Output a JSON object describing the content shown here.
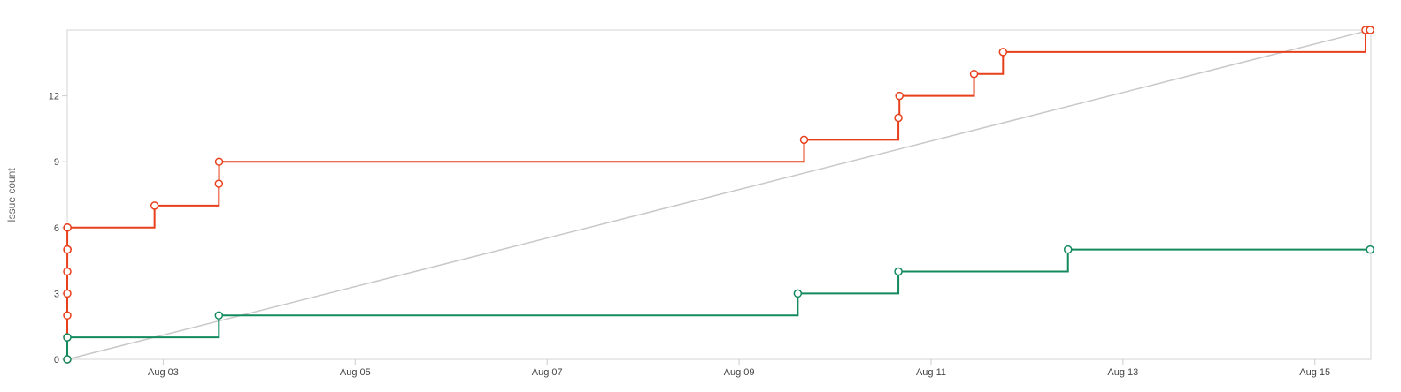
{
  "chart_data": {
    "type": "line",
    "step": true,
    "ylabel": "Issue count",
    "xlabel": "",
    "ylim": [
      0,
      15
    ],
    "xlim": [
      "2025-08-02T00:00",
      "2025-08-15T14:00"
    ],
    "y_ticks": [
      0,
      3,
      6,
      9,
      12
    ],
    "x_ticks": [
      {
        "date": "2025-08-03T00:00",
        "label": "Aug 03"
      },
      {
        "date": "2025-08-05T00:00",
        "label": "Aug 05"
      },
      {
        "date": "2025-08-07T00:00",
        "label": "Aug 07"
      },
      {
        "date": "2025-08-09T00:00",
        "label": "Aug 09"
      },
      {
        "date": "2025-08-11T00:00",
        "label": "Aug 11"
      },
      {
        "date": "2025-08-13T00:00",
        "label": "Aug 13"
      },
      {
        "date": "2025-08-15T00:00",
        "label": "Aug 15"
      }
    ],
    "grid": false,
    "series": [
      {
        "color": "#e8401c",
        "points": [
          {
            "x": "2025-08-02T00:00",
            "y": 0
          },
          {
            "x": "2025-08-02T00:00",
            "y": 1
          },
          {
            "x": "2025-08-02T00:00",
            "y": 2
          },
          {
            "x": "2025-08-02T00:00",
            "y": 3
          },
          {
            "x": "2025-08-02T00:00",
            "y": 4
          },
          {
            "x": "2025-08-02T00:01",
            "y": 5
          },
          {
            "x": "2025-08-02T00:02",
            "y": 5
          },
          {
            "x": "2025-08-02T00:01",
            "y": 6
          },
          {
            "x": "2025-08-02T00:03",
            "y": 6
          },
          {
            "x": "2025-08-02T21:50",
            "y": 7
          },
          {
            "x": "2025-08-03T13:55",
            "y": 8
          },
          {
            "x": "2025-08-03T13:58",
            "y": 9
          },
          {
            "x": "2025-08-09T16:15",
            "y": 10
          },
          {
            "x": "2025-08-10T15:50",
            "y": 11
          },
          {
            "x": "2025-08-10T16:05",
            "y": 12
          },
          {
            "x": "2025-08-11T10:45",
            "y": 13
          },
          {
            "x": "2025-08-11T18:00",
            "y": 14
          },
          {
            "x": "2025-08-15T12:40",
            "y": 15
          },
          {
            "x": "2025-08-15T13:50",
            "y": 15
          }
        ]
      },
      {
        "color": "#138a5e",
        "points": [
          {
            "x": "2025-08-02T00:00",
            "y": 0
          },
          {
            "x": "2025-08-02T00:00",
            "y": 1
          },
          {
            "x": "2025-08-03T13:55",
            "y": 2
          },
          {
            "x": "2025-08-09T14:40",
            "y": 3
          },
          {
            "x": "2025-08-10T15:50",
            "y": 4
          },
          {
            "x": "2025-08-12T10:15",
            "y": 5
          },
          {
            "x": "2025-08-15T13:50",
            "y": 5
          }
        ]
      },
      {
        "color": "#c8c8c8",
        "ideal": true,
        "points": [
          {
            "x": "2025-08-02T00:00",
            "y": 0
          },
          {
            "x": "2025-08-15T13:50",
            "y": 15
          }
        ]
      }
    ]
  }
}
